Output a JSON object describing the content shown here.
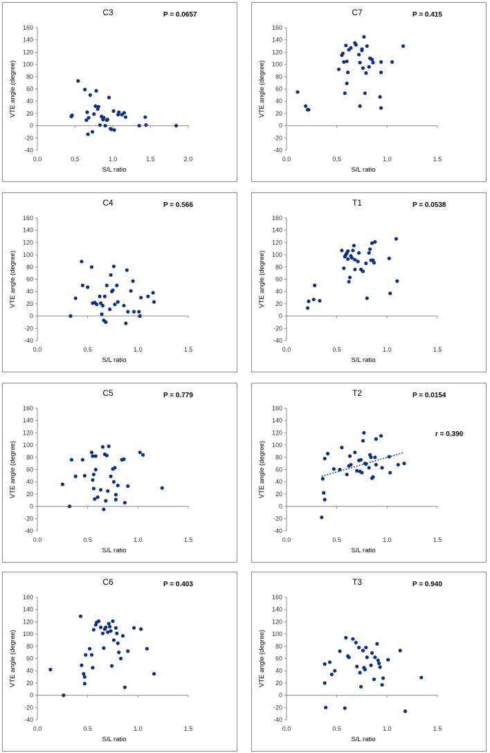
{
  "chart_data": [
    {
      "type": "scatter",
      "title": "C3",
      "p_label": "P = 0.0657",
      "xlabel": "S/L ratio",
      "ylabel": "VTE angle (degree)",
      "xlim": [
        0,
        2
      ],
      "xticks": [
        "0.0",
        "0.5",
        "1.0",
        "1.5",
        "2.0"
      ],
      "ylim": [
        -40,
        160
      ],
      "yticks": [
        "-40",
        "-20",
        "0",
        "20",
        "40",
        "60",
        "80",
        "100",
        "120",
        "140",
        "160"
      ],
      "x": [
        0.45,
        0.46,
        0.54,
        0.63,
        0.65,
        0.66,
        0.67,
        0.68,
        0.7,
        0.73,
        0.75,
        0.77,
        0.78,
        0.8,
        0.81,
        0.83,
        0.85,
        0.87,
        0.88,
        0.9,
        0.92,
        0.93,
        0.95,
        0.97,
        0.98,
        1.01,
        1.02,
        1.07,
        1.08,
        1.12,
        1.15,
        1.17,
        1.35,
        1.43,
        1.44,
        1.84
      ],
      "y": [
        15,
        17,
        73,
        59,
        9,
        22,
        -14,
        13,
        50,
        -10,
        19,
        32,
        57,
        27,
        31,
        1,
        15,
        10,
        13,
        0,
        9,
        10,
        46,
        -5,
        -6,
        24,
        -7,
        18,
        22,
        18,
        21,
        14,
        0,
        14,
        1,
        0
      ],
      "trendline": null
    },
    {
      "type": "scatter",
      "title": "C7",
      "p_label": "P = 0.415",
      "xlabel": "S/L ratio",
      "ylabel": "VTE angle (degree)",
      "xlim": [
        0,
        1.5
      ],
      "xticks": [
        "0.0",
        "0.5",
        "1.0",
        "1.5"
      ],
      "ylim": [
        -40,
        160
      ],
      "yticks": [
        "-40",
        "-20",
        "0",
        "20",
        "40",
        "60",
        "80",
        "100",
        "120",
        "140",
        "160"
      ],
      "x": [
        0.11,
        0.19,
        0.21,
        0.22,
        0.52,
        0.55,
        0.56,
        0.57,
        0.58,
        0.59,
        0.6,
        0.6,
        0.61,
        0.62,
        0.64,
        0.68,
        0.69,
        0.72,
        0.73,
        0.73,
        0.75,
        0.75,
        0.76,
        0.77,
        0.78,
        0.79,
        0.8,
        0.82,
        0.83,
        0.85,
        0.86,
        0.93,
        0.94,
        0.94,
        0.94,
        1.05,
        1.16
      ],
      "y": [
        55,
        32,
        26,
        26,
        92,
        115,
        118,
        104,
        53,
        131,
        105,
        69,
        87,
        124,
        127,
        135,
        132,
        116,
        32,
        103,
        123,
        125,
        94,
        145,
        53,
        86,
        130,
        96,
        110,
        108,
        103,
        47,
        29,
        87,
        104,
        104,
        130
      ],
      "trendline": null
    },
    {
      "type": "scatter",
      "title": "C4",
      "p_label": "P = 0.566",
      "xlabel": "S/L ratio",
      "ylabel": "VTE angle (degree)",
      "xlim": [
        0,
        1.5
      ],
      "xticks": [
        "0.0",
        "0.5",
        "1.0",
        "1.5"
      ],
      "ylim": [
        -40,
        160
      ],
      "yticks": [
        "-40",
        "-20",
        "0",
        "20",
        "40",
        "60",
        "80",
        "100",
        "120",
        "140",
        "160"
      ],
      "x": [
        0.33,
        0.38,
        0.44,
        0.45,
        0.5,
        0.54,
        0.55,
        0.57,
        0.59,
        0.62,
        0.63,
        0.64,
        0.65,
        0.66,
        0.67,
        0.68,
        0.69,
        0.72,
        0.73,
        0.74,
        0.75,
        0.76,
        0.77,
        0.79,
        0.8,
        0.86,
        0.88,
        0.89,
        0.9,
        0.93,
        0.95,
        0.96,
        1.01,
        1.02,
        1.03,
        1.1,
        1.15,
        1.16
      ],
      "y": [
        0,
        29,
        89,
        50,
        47,
        80,
        21,
        22,
        19,
        32,
        21,
        3,
        17,
        -7,
        32,
        -10,
        50,
        11,
        67,
        40,
        42,
        81,
        19,
        50,
        23,
        17,
        -12,
        75,
        7,
        41,
        57,
        7,
        7,
        0,
        30,
        32,
        38,
        23
      ],
      "trendline": null
    },
    {
      "type": "scatter",
      "title": "T1",
      "p_label": "P = 0.0538",
      "xlabel": "S/L ratio",
      "ylabel": "VTE angle (degree)",
      "xlim": [
        0,
        1.5
      ],
      "xticks": [
        "0.0",
        "0.5",
        "1.0",
        "1.5"
      ],
      "ylim": [
        -40,
        160
      ],
      "yticks": [
        "-40",
        "-20",
        "0",
        "20",
        "40",
        "60",
        "80",
        "100",
        "120",
        "140",
        "160"
      ],
      "x": [
        0.21,
        0.22,
        0.27,
        0.28,
        0.33,
        0.55,
        0.57,
        0.58,
        0.59,
        0.6,
        0.61,
        0.61,
        0.62,
        0.63,
        0.64,
        0.65,
        0.66,
        0.67,
        0.68,
        0.68,
        0.71,
        0.72,
        0.74,
        0.76,
        0.79,
        0.8,
        0.82,
        0.83,
        0.84,
        0.85,
        0.86,
        0.87,
        0.88,
        1.02,
        1.03,
        1.09,
        1.1
      ],
      "y": [
        13,
        24,
        27,
        50,
        25,
        107,
        78,
        97,
        100,
        103,
        106,
        93,
        56,
        63,
        98,
        95,
        107,
        115,
        92,
        76,
        89,
        103,
        76,
        73,
        86,
        29,
        103,
        109,
        91,
        119,
        91,
        87,
        121,
        94,
        37,
        126,
        57
      ],
      "trendline": null
    },
    {
      "type": "scatter",
      "title": "C5",
      "p_label": "P = 0.779",
      "xlabel": "S/L ratio",
      "ylabel": "VTE angle (degree)",
      "xlim": [
        0,
        1.5
      ],
      "xticks": [
        "0.0",
        "0.5",
        "1.0",
        "1.5"
      ],
      "ylim": [
        -40,
        160
      ],
      "yticks": [
        "-40",
        "-20",
        "0",
        "20",
        "40",
        "60",
        "80",
        "100",
        "120",
        "140",
        "160"
      ],
      "x": [
        0.25,
        0.32,
        0.34,
        0.38,
        0.45,
        0.47,
        0.54,
        0.55,
        0.55,
        0.56,
        0.56,
        0.57,
        0.58,
        0.58,
        0.6,
        0.63,
        0.65,
        0.66,
        0.67,
        0.68,
        0.69,
        0.7,
        0.71,
        0.73,
        0.75,
        0.76,
        0.77,
        0.78,
        0.78,
        0.8,
        0.84,
        0.86,
        0.87,
        0.9,
        1.02,
        1.05,
        1.24
      ],
      "y": [
        36,
        0,
        76,
        49,
        76,
        50,
        88,
        82,
        43,
        52,
        29,
        12,
        82,
        60,
        15,
        27,
        97,
        -5,
        85,
        9,
        83,
        25,
        98,
        49,
        61,
        40,
        63,
        19,
        11,
        34,
        76,
        77,
        6,
        33,
        88,
        84,
        30
      ],
      "trendline": null
    },
    {
      "type": "scatter",
      "title": "T2",
      "p_label": "P = 0.0154",
      "r_label": "r = 0.390",
      "xlabel": "S/L ratio",
      "ylabel": "VTE angle (degree)",
      "xlim": [
        0,
        1.5
      ],
      "xticks": [
        "0.0",
        "0.5",
        "1.0",
        "1.5"
      ],
      "ylim": [
        -40,
        160
      ],
      "yticks": [
        "-40",
        "-20",
        "0",
        "20",
        "40",
        "60",
        "80",
        "100",
        "120",
        "140",
        "160"
      ],
      "x": [
        0.35,
        0.36,
        0.37,
        0.38,
        0.38,
        0.41,
        0.47,
        0.53,
        0.55,
        0.6,
        0.62,
        0.63,
        0.64,
        0.68,
        0.7,
        0.72,
        0.73,
        0.74,
        0.75,
        0.76,
        0.77,
        0.78,
        0.79,
        0.82,
        0.83,
        0.84,
        0.85,
        0.86,
        0.88,
        0.89,
        0.89,
        0.94,
        0.95,
        1.02,
        1.03,
        1.11,
        1.17
      ],
      "y": [
        -18,
        45,
        22,
        11,
        78,
        86,
        61,
        60,
        96,
        52,
        66,
        82,
        68,
        88,
        58,
        75,
        57,
        76,
        55,
        107,
        120,
        70,
        69,
        63,
        84,
        80,
        46,
        48,
        80,
        68,
        110,
        115,
        63,
        81,
        55,
        68,
        70
      ],
      "trendline": {
        "x": [
          0.35,
          1.17
        ],
        "y": [
          49,
          88
        ]
      }
    },
    {
      "type": "scatter",
      "title": "C6",
      "p_label": "P = 0.403",
      "xlabel": "S/L ratio",
      "ylabel": "VTE angle (degree)",
      "xlim": [
        0,
        1.5
      ],
      "xticks": [
        "0.0",
        "0.5",
        "1.0",
        "1.5"
      ],
      "ylim": [
        -40,
        160
      ],
      "yticks": [
        "-40",
        "-20",
        "0",
        "20",
        "40",
        "60",
        "80",
        "100",
        "120",
        "140",
        "160"
      ],
      "x": [
        0.13,
        0.26,
        0.43,
        0.44,
        0.46,
        0.47,
        0.47,
        0.48,
        0.52,
        0.54,
        0.55,
        0.56,
        0.58,
        0.59,
        0.61,
        0.63,
        0.65,
        0.66,
        0.67,
        0.68,
        0.7,
        0.71,
        0.72,
        0.73,
        0.74,
        0.75,
        0.76,
        0.78,
        0.79,
        0.8,
        0.81,
        0.83,
        0.85,
        0.87,
        0.9,
        0.96,
        1.03,
        1.09,
        1.16
      ],
      "y": [
        42,
        0,
        129,
        49,
        35,
        30,
        19,
        66,
        76,
        66,
        45,
        107,
        115,
        119,
        121,
        111,
        101,
        77,
        108,
        111,
        103,
        117,
        112,
        105,
        48,
        121,
        90,
        110,
        101,
        85,
        70,
        60,
        97,
        13,
        72,
        110,
        108,
        76,
        35
      ],
      "trendline": null
    },
    {
      "type": "scatter",
      "title": "T3",
      "p_label": "P = 0.940",
      "xlabel": "S/L ratio",
      "ylabel": "VTE angle (degree)",
      "xlim": [
        0,
        1.5
      ],
      "xticks": [
        "0.0",
        "0.5",
        "1.0",
        "1.5"
      ],
      "ylim": [
        -40,
        160
      ],
      "yticks": [
        "-40",
        "-20",
        "0",
        "20",
        "40",
        "60",
        "80",
        "100",
        "120",
        "140",
        "160"
      ],
      "x": [
        0.38,
        0.38,
        0.39,
        0.43,
        0.45,
        0.48,
        0.53,
        0.58,
        0.59,
        0.61,
        0.62,
        0.66,
        0.69,
        0.7,
        0.72,
        0.73,
        0.74,
        0.76,
        0.77,
        0.78,
        0.79,
        0.8,
        0.84,
        0.85,
        0.87,
        0.88,
        0.9,
        0.91,
        0.92,
        0.93,
        0.95,
        0.96,
        1.01,
        1.13,
        1.18,
        1.34
      ],
      "y": [
        51,
        20,
        -20,
        54,
        34,
        40,
        72,
        -21,
        94,
        64,
        62,
        92,
        86,
        47,
        78,
        37,
        14,
        73,
        45,
        42,
        78,
        62,
        49,
        69,
        26,
        62,
        84,
        57,
        52,
        46,
        17,
        28,
        58,
        73,
        -26,
        29
      ],
      "trendline": null
    }
  ]
}
